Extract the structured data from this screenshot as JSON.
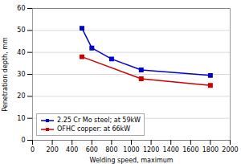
{
  "chart_data": {
    "type": "line",
    "xlabel": "Welding speed, maximum",
    "ylabel": "Penetration depth, mm",
    "series": [
      {
        "name": "2.25 Cr Mo steel; at 59kW",
        "color": "#0000cc",
        "marker": "square",
        "x": [
          500,
          600,
          800,
          1100,
          1800
        ],
        "values": [
          51,
          42,
          37,
          32,
          29.5
        ]
      },
      {
        "name": "OFHC copper: at 66kW",
        "color": "#cc0000",
        "marker": "square",
        "x": [
          500,
          1100,
          1800
        ],
        "values": [
          38,
          28,
          25
        ]
      }
    ],
    "xlim": [
      0,
      2000
    ],
    "ylim": [
      0,
      60
    ],
    "xticks": [
      0,
      200,
      400,
      600,
      800,
      1000,
      1200,
      1400,
      1600,
      1800,
      2000
    ],
    "yticks": [
      0,
      10,
      20,
      30,
      40,
      50,
      60
    ],
    "grid": "y",
    "legend": "lower left"
  }
}
